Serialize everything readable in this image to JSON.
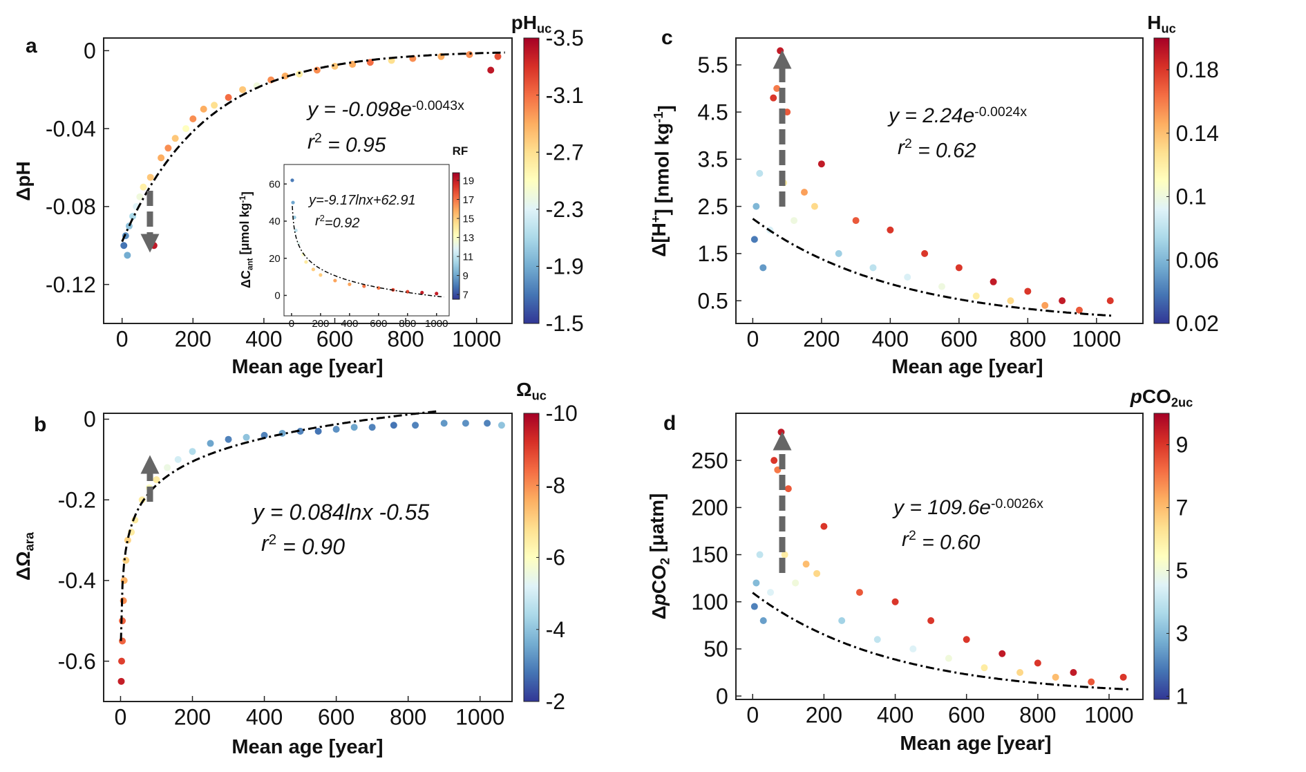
{
  "chart_data": [
    {
      "type": "scatter",
      "label": "a",
      "xlabel": [
        {
          "text": "Mean age [year]"
        }
      ],
      "ylabel": [
        {
          "text": "ΔpH"
        }
      ],
      "xlim": [
        -52,
        1100
      ],
      "ylim": [
        -0.14,
        0.0065
      ],
      "xticks": [
        0,
        200,
        400,
        600,
        800,
        1000
      ],
      "yticks": [
        -0.12,
        -0.08,
        -0.04,
        0
      ],
      "x": [
        5,
        10,
        15,
        20,
        30,
        40,
        50,
        60,
        80,
        90,
        110,
        130,
        150,
        180,
        200,
        230,
        260,
        300,
        340,
        380,
        420,
        460,
        500,
        550,
        600,
        650,
        700,
        760,
        820,
        900,
        980,
        1040,
        1060
      ],
      "values": [
        -0.1,
        -0.095,
        -0.105,
        -0.09,
        -0.085,
        -0.08,
        -0.075,
        -0.07,
        -0.065,
        -0.1,
        -0.055,
        -0.05,
        -0.045,
        -0.04,
        -0.035,
        -0.03,
        -0.028,
        -0.024,
        -0.02,
        -0.018,
        -0.015,
        -0.013,
        -0.012,
        -0.01,
        -0.008,
        -0.007,
        -0.006,
        -0.005,
        -0.004,
        -0.003,
        -0.002,
        -0.01,
        -0.003
      ],
      "c": [
        -1.7,
        -1.8,
        -1.9,
        -2.0,
        -2.1,
        -2.3,
        -2.4,
        -2.6,
        -2.8,
        -3.4,
        -2.9,
        -3.0,
        -2.8,
        -2.5,
        -3.0,
        -2.9,
        -2.7,
        -3.1,
        -2.8,
        -2.4,
        -3.0,
        -2.9,
        -2.6,
        -3.0,
        -2.8,
        -2.9,
        -3.1,
        -2.7,
        -3.0,
        -2.9,
        -3.0,
        -3.4,
        -3.2
      ],
      "colormap": "RdYlBu_r",
      "colorbar": {
        "title": [
          {
            "text": "pH"
          },
          {
            "text": "uc",
            "style": "sub"
          }
        ],
        "lim": [
          -1.5,
          -3.5
        ],
        "ticks": [
          -3.5,
          -3.1,
          -2.7,
          -2.3,
          -1.9,
          -1.5
        ]
      },
      "fit": {
        "model": "exp",
        "a": -0.098,
        "k": -0.0043,
        "x": [
          0,
          1080
        ]
      },
      "equation": [
        {
          "text": "y = -0.098e",
          "style": "italic"
        },
        {
          "text": "-0.0043x",
          "style": "sup"
        }
      ],
      "r2": [
        {
          "text": "r",
          "style": "italic"
        },
        {
          "text": "2",
          "style": "sup"
        },
        {
          "text": " = 0.95",
          "style": "italic"
        }
      ]
    },
    {
      "type": "scatter",
      "label": null,
      "xlabel": null,
      "ylabel": [
        {
          "text": "ΔC"
        },
        {
          "text": "ant",
          "style": "sub"
        },
        {
          "text": " [μmol kg"
        },
        {
          "text": "-1",
          "style": "sup"
        },
        {
          "text": "]"
        }
      ],
      "xlim": [
        -52,
        1087
      ],
      "ylim": [
        -11,
        70.5
      ],
      "xticks": [
        0,
        200,
        400,
        600,
        800,
        1000
      ],
      "yticks": [
        0,
        20,
        40,
        60
      ],
      "x": [
        5,
        10,
        20,
        30,
        50,
        80,
        100,
        150,
        200,
        300,
        400,
        500,
        600,
        700,
        800,
        900,
        1000
      ],
      "values": [
        62,
        50,
        42,
        35,
        28,
        22,
        18,
        14,
        11,
        8,
        6,
        5,
        4,
        3,
        2,
        1.5,
        1
      ],
      "c": [
        8,
        9,
        10,
        11,
        12,
        13,
        14,
        15,
        15,
        16,
        16,
        17,
        17,
        18,
        18,
        19,
        19
      ],
      "colormap": "RdYlBu_r",
      "colorbar": {
        "title": [
          {
            "text": "RF"
          }
        ],
        "lim": [
          6.5,
          19.8
        ],
        "ticks": [
          7,
          9,
          11,
          13,
          15,
          17,
          19
        ]
      },
      "fit": {
        "model": "log",
        "a": -9.17,
        "b": 62.91,
        "x": [
          5,
          1050
        ]
      },
      "equation": [
        {
          "text": "y=-9.17lnx+62.91",
          "style": "italic"
        }
      ],
      "r2": [
        {
          "text": "r",
          "style": "italic"
        },
        {
          "text": "2",
          "style": "sup"
        },
        {
          "text": "=0.92",
          "style": "italic"
        }
      ]
    },
    {
      "type": "scatter",
      "label": "b",
      "xlabel": [
        {
          "text": "Mean age [year]"
        }
      ],
      "ylabel": [
        {
          "text": "ΔΩ"
        },
        {
          "text": "ara",
          "style": "sub"
        }
      ],
      "xlim": [
        -47,
        1089
      ],
      "ylim": [
        -0.7,
        0.0146
      ],
      "xticks": [
        0,
        200,
        400,
        600,
        800,
        1000
      ],
      "yticks": [
        -0.6,
        -0.4,
        -0.2,
        0
      ],
      "x": [
        2,
        3,
        5,
        5,
        8,
        10,
        15,
        20,
        30,
        40,
        60,
        80,
        100,
        130,
        160,
        200,
        250,
        300,
        350,
        400,
        450,
        500,
        550,
        600,
        650,
        700,
        760,
        820,
        900,
        960,
        1020,
        1060
      ],
      "values": [
        -0.65,
        -0.6,
        -0.55,
        -0.5,
        -0.45,
        -0.4,
        -0.35,
        -0.3,
        -0.28,
        -0.25,
        -0.2,
        -0.17,
        -0.15,
        -0.12,
        -0.1,
        -0.08,
        -0.06,
        -0.05,
        -0.045,
        -0.04,
        -0.035,
        -0.03,
        -0.03,
        -0.025,
        -0.02,
        -0.02,
        -0.015,
        -0.015,
        -0.01,
        -0.01,
        -0.01,
        -0.015
      ],
      "c": [
        -9.5,
        -9,
        -8.5,
        -8.5,
        -8,
        -7.5,
        -7,
        -7,
        -6.5,
        -6.5,
        -6.5,
        -6,
        -6.5,
        -5.5,
        -5,
        -4.5,
        -3.5,
        -3,
        -4,
        -3,
        -3.5,
        -3,
        -2.8,
        -3.2,
        -3.5,
        -3,
        -2.8,
        -3,
        -3.3,
        -3.2,
        -3,
        -4
      ],
      "colormap": "RdYlBu_r",
      "colorbar": {
        "title": [
          {
            "text": "Ω"
          },
          {
            "text": "uc",
            "style": "sub"
          }
        ],
        "lim": [
          -2,
          -10
        ],
        "ticks": [
          -10,
          -8,
          -6,
          -4,
          -2
        ]
      },
      "fit": {
        "model": "log",
        "a": 0.084,
        "b": -0.55,
        "x": [
          1,
          880
        ]
      },
      "equation": [
        {
          "text": "y = 0.084lnx -0.55",
          "style": "italic"
        }
      ],
      "r2": [
        {
          "text": "r",
          "style": "italic"
        },
        {
          "text": "2",
          "style": "sup"
        },
        {
          "text": " = 0.90",
          "style": "italic"
        }
      ]
    },
    {
      "type": "scatter",
      "label": "c",
      "xlabel": [
        {
          "text": "Mean age [year]"
        }
      ],
      "ylabel": [
        {
          "text": "Δ[H"
        },
        {
          "text": "+",
          "style": "sup"
        },
        {
          "text": "] [nmol kg"
        },
        {
          "text": "-1",
          "style": "sup"
        },
        {
          "text": "]"
        }
      ],
      "xlim": [
        -49,
        1135
      ],
      "ylim": [
        0.018,
        6.07
      ],
      "xticks": [
        0,
        200,
        400,
        600,
        800,
        1000
      ],
      "yticks": [
        0.5,
        1.5,
        2.5,
        3.5,
        4.5,
        5.5
      ],
      "x": [
        5,
        10,
        20,
        30,
        50,
        60,
        70,
        80,
        90,
        100,
        120,
        150,
        180,
        200,
        250,
        300,
        350,
        400,
        450,
        500,
        550,
        600,
        650,
        700,
        750,
        800,
        850,
        900,
        950,
        1040
      ],
      "values": [
        1.8,
        2.5,
        3.2,
        1.2,
        2.0,
        4.8,
        5.0,
        5.8,
        3.0,
        4.5,
        2.2,
        2.8,
        2.5,
        3.4,
        1.5,
        2.2,
        1.2,
        2.0,
        1.0,
        1.5,
        0.8,
        1.2,
        0.6,
        0.9,
        0.5,
        0.7,
        0.4,
        0.5,
        0.3,
        0.5
      ],
      "c": [
        0.04,
        0.06,
        0.08,
        0.05,
        0.09,
        0.18,
        0.16,
        0.19,
        0.12,
        0.17,
        0.1,
        0.15,
        0.13,
        0.19,
        0.07,
        0.17,
        0.08,
        0.18,
        0.09,
        0.18,
        0.1,
        0.18,
        0.12,
        0.19,
        0.13,
        0.18,
        0.15,
        0.19,
        0.17,
        0.18
      ],
      "colormap": "RdYlBu_r",
      "colorbar": {
        "title": [
          {
            "text": "H"
          },
          {
            "text": "uc",
            "style": "sub"
          }
        ],
        "lim": [
          0.02,
          0.2
        ],
        "ticks": [
          0.02,
          0.06,
          0.1,
          0.14,
          0.18
        ]
      },
      "fit": {
        "model": "exp",
        "a": 2.24,
        "k": -0.0024,
        "x": [
          0,
          1050
        ]
      },
      "equation": [
        {
          "text": "y = 2.24e",
          "style": "italic"
        },
        {
          "text": "-0.0024x",
          "style": "sup"
        }
      ],
      "r2": [
        {
          "text": "r",
          "style": "italic"
        },
        {
          "text": "2",
          "style": "sup"
        },
        {
          "text": " = 0.62",
          "style": "italic"
        }
      ]
    },
    {
      "type": "scatter",
      "label": "d",
      "xlabel": [
        {
          "text": "Mean age [year]"
        }
      ],
      "ylabel": [
        {
          "text": "Δ"
        },
        {
          "text": "p",
          "style": "italic"
        },
        {
          "text": "CO"
        },
        {
          "text": "2",
          "style": "sub"
        },
        {
          "text": " [μatm]"
        }
      ],
      "xlim": [
        -47,
        1095
      ],
      "ylim": [
        -3.6,
        300
      ],
      "xticks": [
        0,
        200,
        400,
        600,
        800,
        1000
      ],
      "yticks": [
        0,
        50,
        100,
        150,
        200,
        250
      ],
      "x": [
        5,
        10,
        20,
        30,
        50,
        60,
        70,
        80,
        90,
        100,
        120,
        150,
        180,
        200,
        250,
        300,
        350,
        400,
        450,
        500,
        550,
        600,
        650,
        700,
        750,
        800,
        850,
        900,
        950,
        1040
      ],
      "values": [
        95,
        120,
        150,
        80,
        110,
        250,
        240,
        280,
        150,
        220,
        120,
        140,
        130,
        180,
        80,
        110,
        60,
        100,
        50,
        80,
        40,
        60,
        30,
        45,
        25,
        35,
        20,
        25,
        15,
        20
      ],
      "c": [
        2,
        3,
        4,
        2.5,
        4.5,
        9,
        8,
        9.5,
        6,
        8.5,
        5,
        7,
        6.5,
        9,
        3.5,
        8.5,
        4,
        9,
        4.5,
        9,
        5,
        9,
        6,
        9.5,
        6.5,
        9,
        7,
        9.5,
        8.5,
        9
      ],
      "colormap": "RdYlBu_r",
      "colorbar": {
        "title": [
          {
            "text": "p",
            "style": "italic"
          },
          {
            "text": "CO"
          },
          {
            "text": "2uc",
            "style": "sub"
          }
        ],
        "lim": [
          0.9,
          10
        ],
        "ticks": [
          1,
          3,
          5,
          7,
          9
        ]
      },
      "fit": {
        "model": "exp",
        "a": 109.6,
        "k": -0.0026,
        "x": [
          0,
          1060
        ]
      },
      "equation": [
        {
          "text": "y = 109.6e",
          "style": "italic"
        },
        {
          "text": "-0.0026x",
          "style": "sup"
        }
      ],
      "r2": [
        {
          "text": "r",
          "style": "italic"
        },
        {
          "text": "2",
          "style": "sup"
        },
        {
          "text": " = 0.60",
          "style": "italic"
        }
      ]
    }
  ]
}
